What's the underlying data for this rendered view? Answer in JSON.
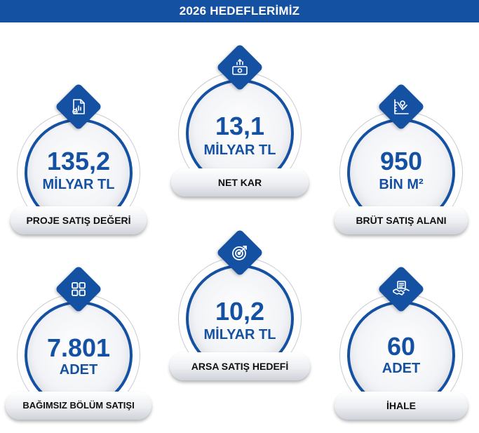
{
  "header": {
    "title": "2026 HEDEFLERİMİZ"
  },
  "colors": {
    "brand_blue": "#1551a3",
    "ring_grey": "#c9ccd3",
    "text_dark": "#111111"
  },
  "cards": [
    {
      "value": "135,2",
      "unit": "MİLYAR TL",
      "label": "PROJE SATIŞ DEĞERİ",
      "icon": "document-chart-icon"
    },
    {
      "value": "13,1",
      "unit": "MİLYAR TL",
      "label": "NET  KAR",
      "icon": "money-growth-icon"
    },
    {
      "value": "950",
      "unit": "BİN M²",
      "label": "BRÜT SATIŞ ALANI",
      "icon": "land-plan-icon"
    },
    {
      "value": "7.801",
      "unit": "ADET",
      "label": "BAĞIMSIZ BÖLÜM SATIŞI",
      "icon": "grid-blocks-icon"
    },
    {
      "value": "10,2",
      "unit": "MİLYAR TL",
      "label": "ARSA SATIŞ HEDEFİ",
      "icon": "target-icon"
    },
    {
      "value": "60",
      "unit": "ADET",
      "label": "İHALE",
      "icon": "handshake-contract-icon"
    }
  ]
}
